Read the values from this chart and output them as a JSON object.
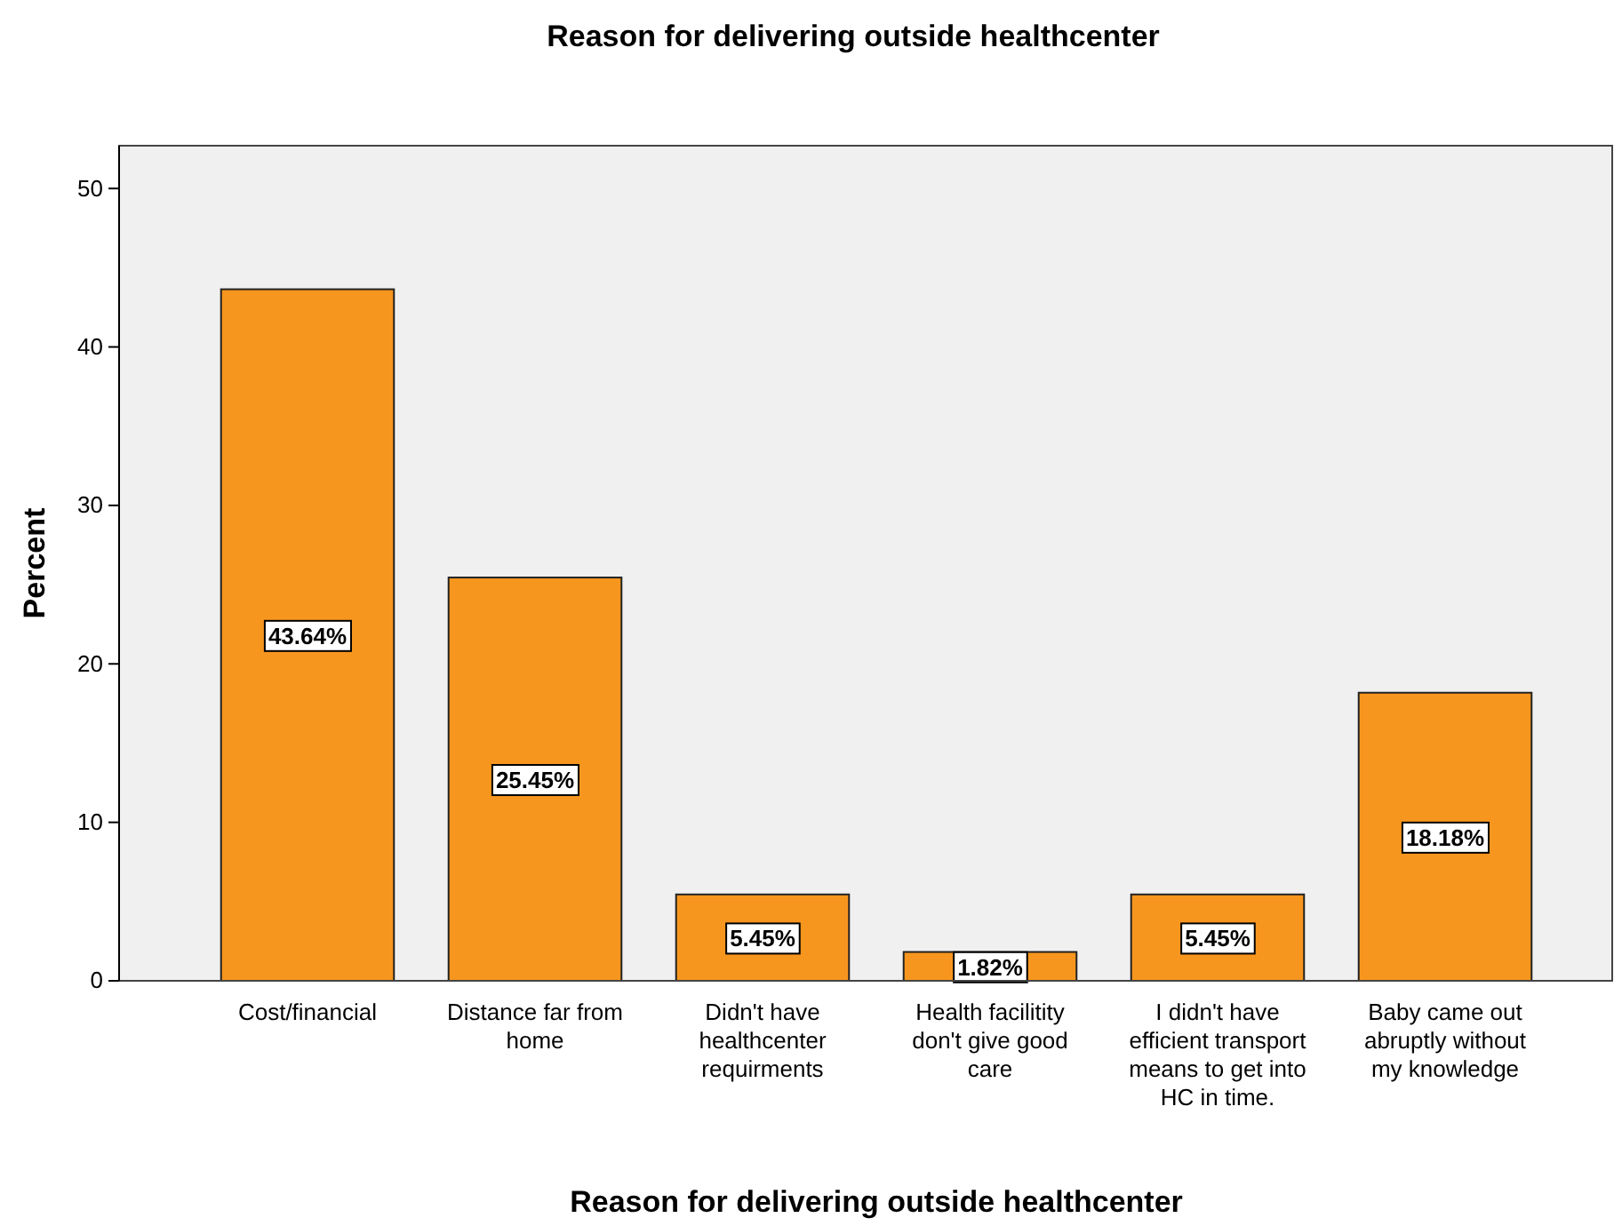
{
  "chart_data": {
    "type": "bar",
    "title": "Reason for delivering outside healthcenter",
    "xlabel": "Reason for delivering outside healthcenter",
    "ylabel": "Percent",
    "categories": [
      "Cost/financial",
      "Distance far from home",
      "Didn't have healthcenter requirments",
      "Health facilitity don't give good care",
      "I didn't have efficient transport means to get into HC in time.",
      "Baby came out abruptly without my knowledge"
    ],
    "values": [
      43.64,
      25.45,
      5.45,
      1.82,
      5.45,
      18.18
    ],
    "value_labels": [
      "43.64%",
      "25.45%",
      "5.45%",
      "1.82%",
      "5.45%",
      "18.18%"
    ],
    "color": "#f7961e",
    "ylim": [
      0,
      52.7
    ],
    "yticks": [
      0,
      10,
      20,
      30,
      40,
      50
    ],
    "grid": false
  }
}
